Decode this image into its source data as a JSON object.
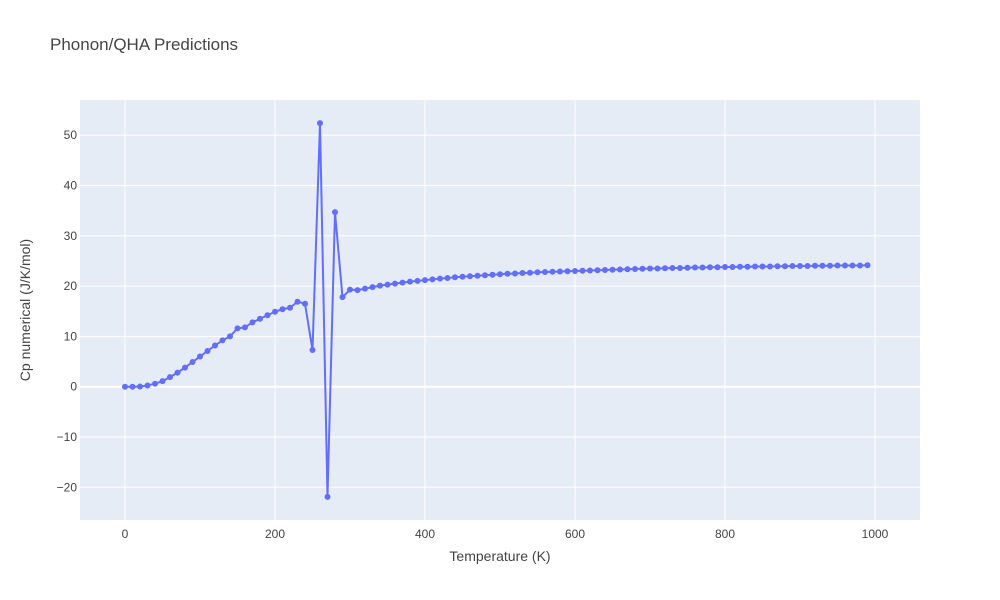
{
  "chart_data": {
    "type": "line",
    "title": "Phonon/QHA Predictions",
    "xlabel": "Temperature (K)",
    "ylabel": "Cp numerical (J/K/mol)",
    "xlim": [
      -60,
      1060
    ],
    "ylim": [
      -26.5,
      57
    ],
    "xticks": [
      0,
      200,
      400,
      600,
      800,
      1000
    ],
    "xtick_labels": [
      "0",
      "200",
      "400",
      "600",
      "800",
      "1000"
    ],
    "yticks": [
      -20,
      -10,
      0,
      10,
      20,
      30,
      40,
      50
    ],
    "ytick_labels": [
      "−20",
      "−10",
      "0",
      "10",
      "20",
      "30",
      "40",
      "50"
    ],
    "grid": true,
    "colors": {
      "series": "#636efa",
      "plot_bg": "#e5ecf6",
      "grid": "#ffffff"
    },
    "series": [
      {
        "mode": "lines+markers",
        "x": [
          0,
          10,
          20,
          30,
          40,
          50,
          60,
          70,
          80,
          90,
          100,
          110,
          120,
          130,
          140,
          150,
          160,
          170,
          180,
          190,
          200,
          210,
          220,
          230,
          240,
          250,
          260,
          270,
          280,
          290,
          300,
          310,
          320,
          330,
          340,
          350,
          360,
          370,
          380,
          390,
          400,
          410,
          420,
          430,
          440,
          450,
          460,
          470,
          480,
          490,
          500,
          510,
          520,
          530,
          540,
          550,
          560,
          570,
          580,
          590,
          600,
          610,
          620,
          630,
          640,
          650,
          660,
          670,
          680,
          690,
          700,
          710,
          720,
          730,
          740,
          750,
          760,
          770,
          780,
          790,
          800,
          810,
          820,
          830,
          840,
          850,
          860,
          870,
          880,
          890,
          900,
          910,
          920,
          930,
          940,
          950,
          960,
          970,
          980,
          990
        ],
        "y": [
          0.0,
          0.0,
          0.05,
          0.25,
          0.6,
          1.1,
          1.9,
          2.8,
          3.8,
          4.9,
          6.0,
          7.1,
          8.2,
          9.2,
          10.0,
          11.6,
          11.8,
          12.8,
          13.5,
          14.2,
          14.9,
          15.4,
          15.7,
          16.9,
          16.5,
          7.3,
          52.4,
          -21.9,
          34.7,
          17.8,
          19.3,
          19.2,
          19.5,
          19.8,
          20.1,
          20.3,
          20.5,
          20.7,
          20.9,
          21.05,
          21.2,
          21.35,
          21.5,
          21.6,
          21.75,
          21.85,
          21.95,
          22.05,
          22.15,
          22.25,
          22.35,
          22.45,
          22.5,
          22.6,
          22.65,
          22.75,
          22.8,
          22.85,
          22.9,
          22.95,
          23.0,
          23.05,
          23.1,
          23.15,
          23.2,
          23.25,
          23.3,
          23.35,
          23.4,
          23.45,
          23.5,
          23.5,
          23.55,
          23.6,
          23.6,
          23.65,
          23.7,
          23.7,
          23.75,
          23.75,
          23.8,
          23.8,
          23.85,
          23.85,
          23.9,
          23.9,
          23.9,
          23.95,
          23.95,
          24.0,
          24.0,
          24.0,
          24.05,
          24.05,
          24.05,
          24.1,
          24.1,
          24.1,
          24.1,
          24.15
        ]
      }
    ]
  }
}
